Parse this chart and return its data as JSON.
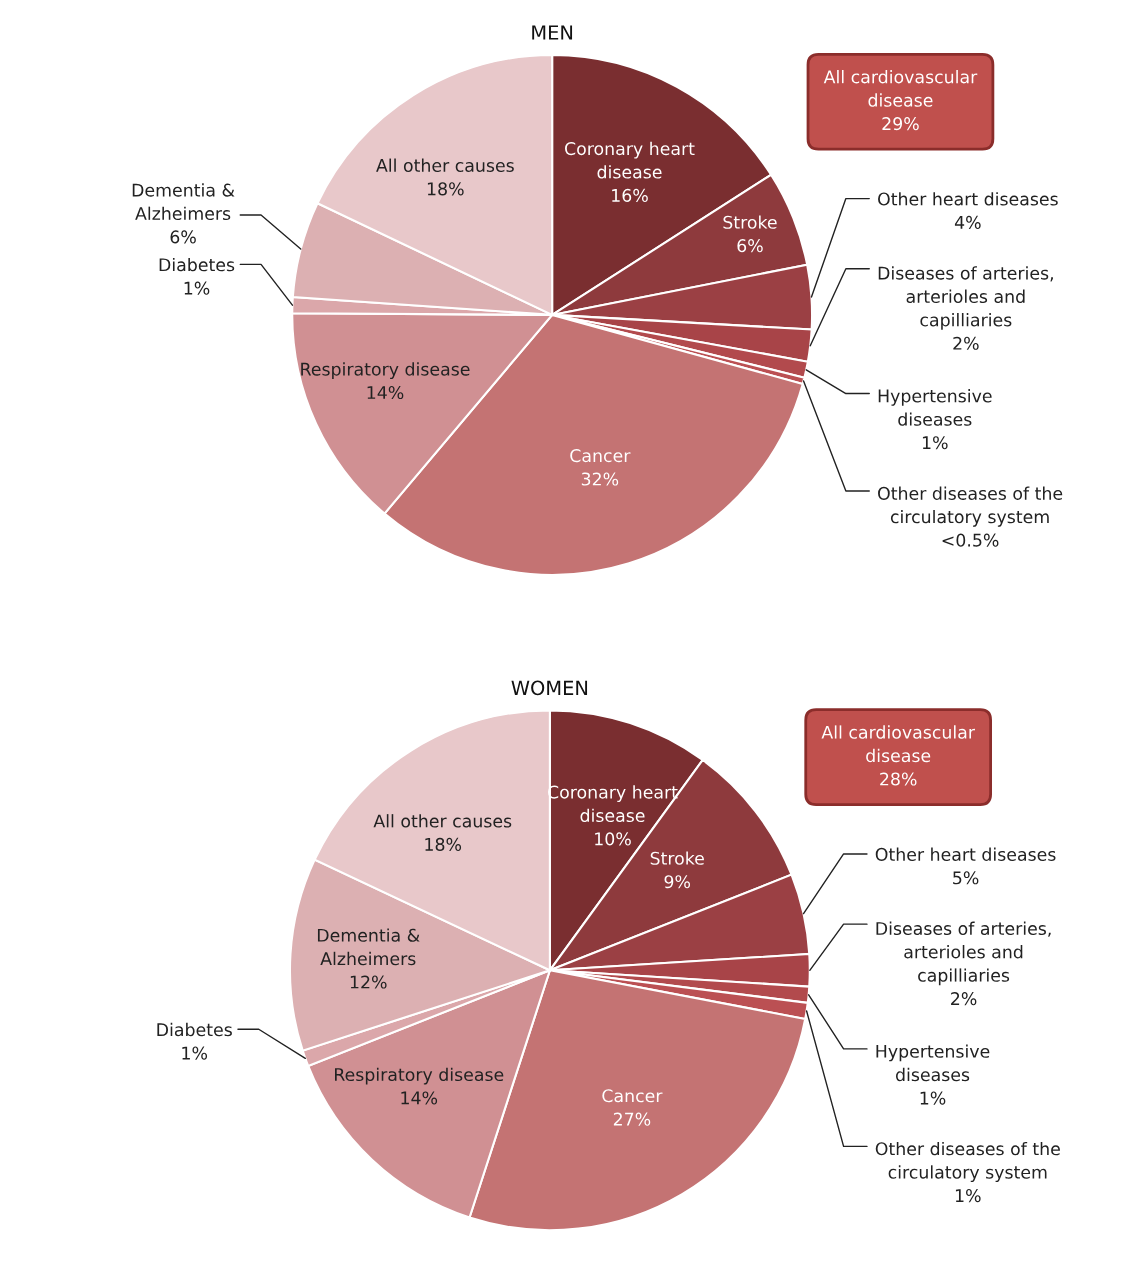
{
  "chart_data": [
    {
      "type": "pie",
      "title": "MEN",
      "categories": [
        "Coronary heart\ndisease",
        "Stroke",
        "Other heart diseases",
        "Diseases of arteries,\narterioles and\ncapilliaries",
        "Hypertensive\ndiseases",
        "Other diseases of the\ncirculatory system",
        "Cancer",
        "Respiratory disease",
        "Diabetes",
        "Dementia &\nAlzheimers",
        "All other causes"
      ],
      "values": [
        16,
        6,
        4,
        2,
        1,
        0.4,
        32,
        14,
        1,
        6,
        18
      ],
      "value_labels": [
        "16%",
        "6%",
        "4%",
        "2%",
        "1%",
        "<0.5%",
        "32%",
        "14%",
        "1%",
        "6%",
        "18%"
      ],
      "colors": [
        "#7a2e30",
        "#8e3a3d",
        "#9b4044",
        "#a84448",
        "#b24a4d",
        "#bb5053",
        "#c47373",
        "#d09093",
        "#dba7aa",
        "#dcb0b2",
        "#e8c8ca"
      ],
      "annotations": [
        "All cardiovascular\ndisease\n29%"
      ]
    },
    {
      "type": "pie",
      "title": "WOMEN",
      "categories": [
        "Coronary heart\ndisease",
        "Stroke",
        "Other heart diseases",
        "Diseases of arteries,\narterioles and\ncapilliaries",
        "Hypertensive\ndiseases",
        "Other diseases of the\ncirculatory system",
        "Cancer",
        "Respiratory disease",
        "Diabetes",
        "Dementia &\nAlzheimers",
        "All other causes"
      ],
      "values": [
        10,
        9,
        5,
        2,
        1,
        1,
        27,
        14,
        1,
        12,
        18
      ],
      "value_labels": [
        "10%",
        "9%",
        "5%",
        "2%",
        "1%",
        "1%",
        "27%",
        "14%",
        "1%",
        "12%",
        "18%"
      ],
      "colors": [
        "#7a2e30",
        "#8e3a3d",
        "#9b4044",
        "#a84448",
        "#b24a4d",
        "#bb5053",
        "#c47373",
        "#d09093",
        "#dba7aa",
        "#dcb0b2",
        "#e8c8ca"
      ],
      "annotations": [
        "All cardiovascular\ndisease\n28%"
      ]
    }
  ]
}
